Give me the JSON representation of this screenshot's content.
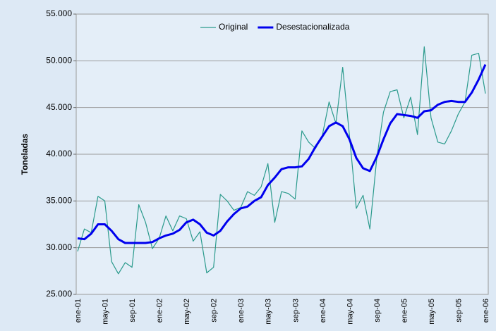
{
  "chart_data": {
    "type": "line",
    "y_label": "Toneladas",
    "categories": [
      "ene-01",
      null,
      null,
      null,
      "may-01",
      null,
      null,
      null,
      "sep-01",
      null,
      null,
      null,
      "ene-02",
      null,
      null,
      null,
      "may-02",
      null,
      null,
      null,
      "sep-02",
      null,
      null,
      null,
      "ene-03",
      null,
      null,
      null,
      "may-03",
      null,
      null,
      null,
      "sep-03",
      null,
      null,
      null,
      "ene-04",
      null,
      null,
      null,
      "may-04",
      null,
      null,
      null,
      "sep-04",
      null,
      null,
      null,
      "ene-05",
      null,
      null,
      null,
      "may-05",
      null,
      null,
      null,
      "sep-05",
      null,
      null,
      null,
      "ene-06"
    ],
    "series": [
      {
        "name": "Original",
        "color": "#2a9a8c",
        "width": 1.2,
        "values": [
          29600,
          32000,
          31600,
          35500,
          35000,
          28500,
          27200,
          28400,
          27900,
          34600,
          32700,
          29900,
          31000,
          33400,
          31800,
          33400,
          33100,
          30700,
          31700,
          27300,
          27900,
          35700,
          35000,
          34000,
          34300,
          36000,
          35600,
          36500,
          39000,
          32700,
          36000,
          35800,
          35200,
          42500,
          41300,
          40600,
          42000,
          45600,
          43300,
          49300,
          42000,
          34200,
          35600,
          32000,
          39500,
          44500,
          46700,
          46900,
          43900,
          46100,
          42100,
          51500,
          43900,
          41300,
          41100,
          42500,
          44300,
          45600,
          50600,
          50800,
          46500
        ]
      },
      {
        "name": "Desestacionalizada",
        "color": "#0000ee",
        "width": 3,
        "values": [
          31000,
          30900,
          31500,
          32500,
          32500,
          31800,
          30900,
          30500,
          30500,
          30500,
          30500,
          30600,
          31000,
          31300,
          31500,
          31900,
          32700,
          33000,
          32500,
          31600,
          31300,
          31800,
          32800,
          33600,
          34200,
          34400,
          35000,
          35400,
          36700,
          37500,
          38400,
          38600,
          38600,
          38700,
          39500,
          40800,
          41900,
          43000,
          43400,
          43000,
          41600,
          39600,
          38500,
          38200,
          39700,
          41600,
          43300,
          44300,
          44200,
          44100,
          43900,
          44600,
          44700,
          45300,
          45600,
          45700,
          45600,
          45600,
          46600,
          48000,
          49600
        ]
      }
    ],
    "ylim": [
      25000,
      55000
    ],
    "yticks": [
      {
        "value": 25000,
        "label": "25.000"
      },
      {
        "value": 30000,
        "label": "30.000"
      },
      {
        "value": 35000,
        "label": "35.000"
      },
      {
        "value": 40000,
        "label": "40.000"
      },
      {
        "value": 45000,
        "label": "45.000"
      },
      {
        "value": 50000,
        "label": "50.000"
      },
      {
        "value": 55000,
        "label": "55.000"
      }
    ],
    "grid": true,
    "legend": "top"
  }
}
